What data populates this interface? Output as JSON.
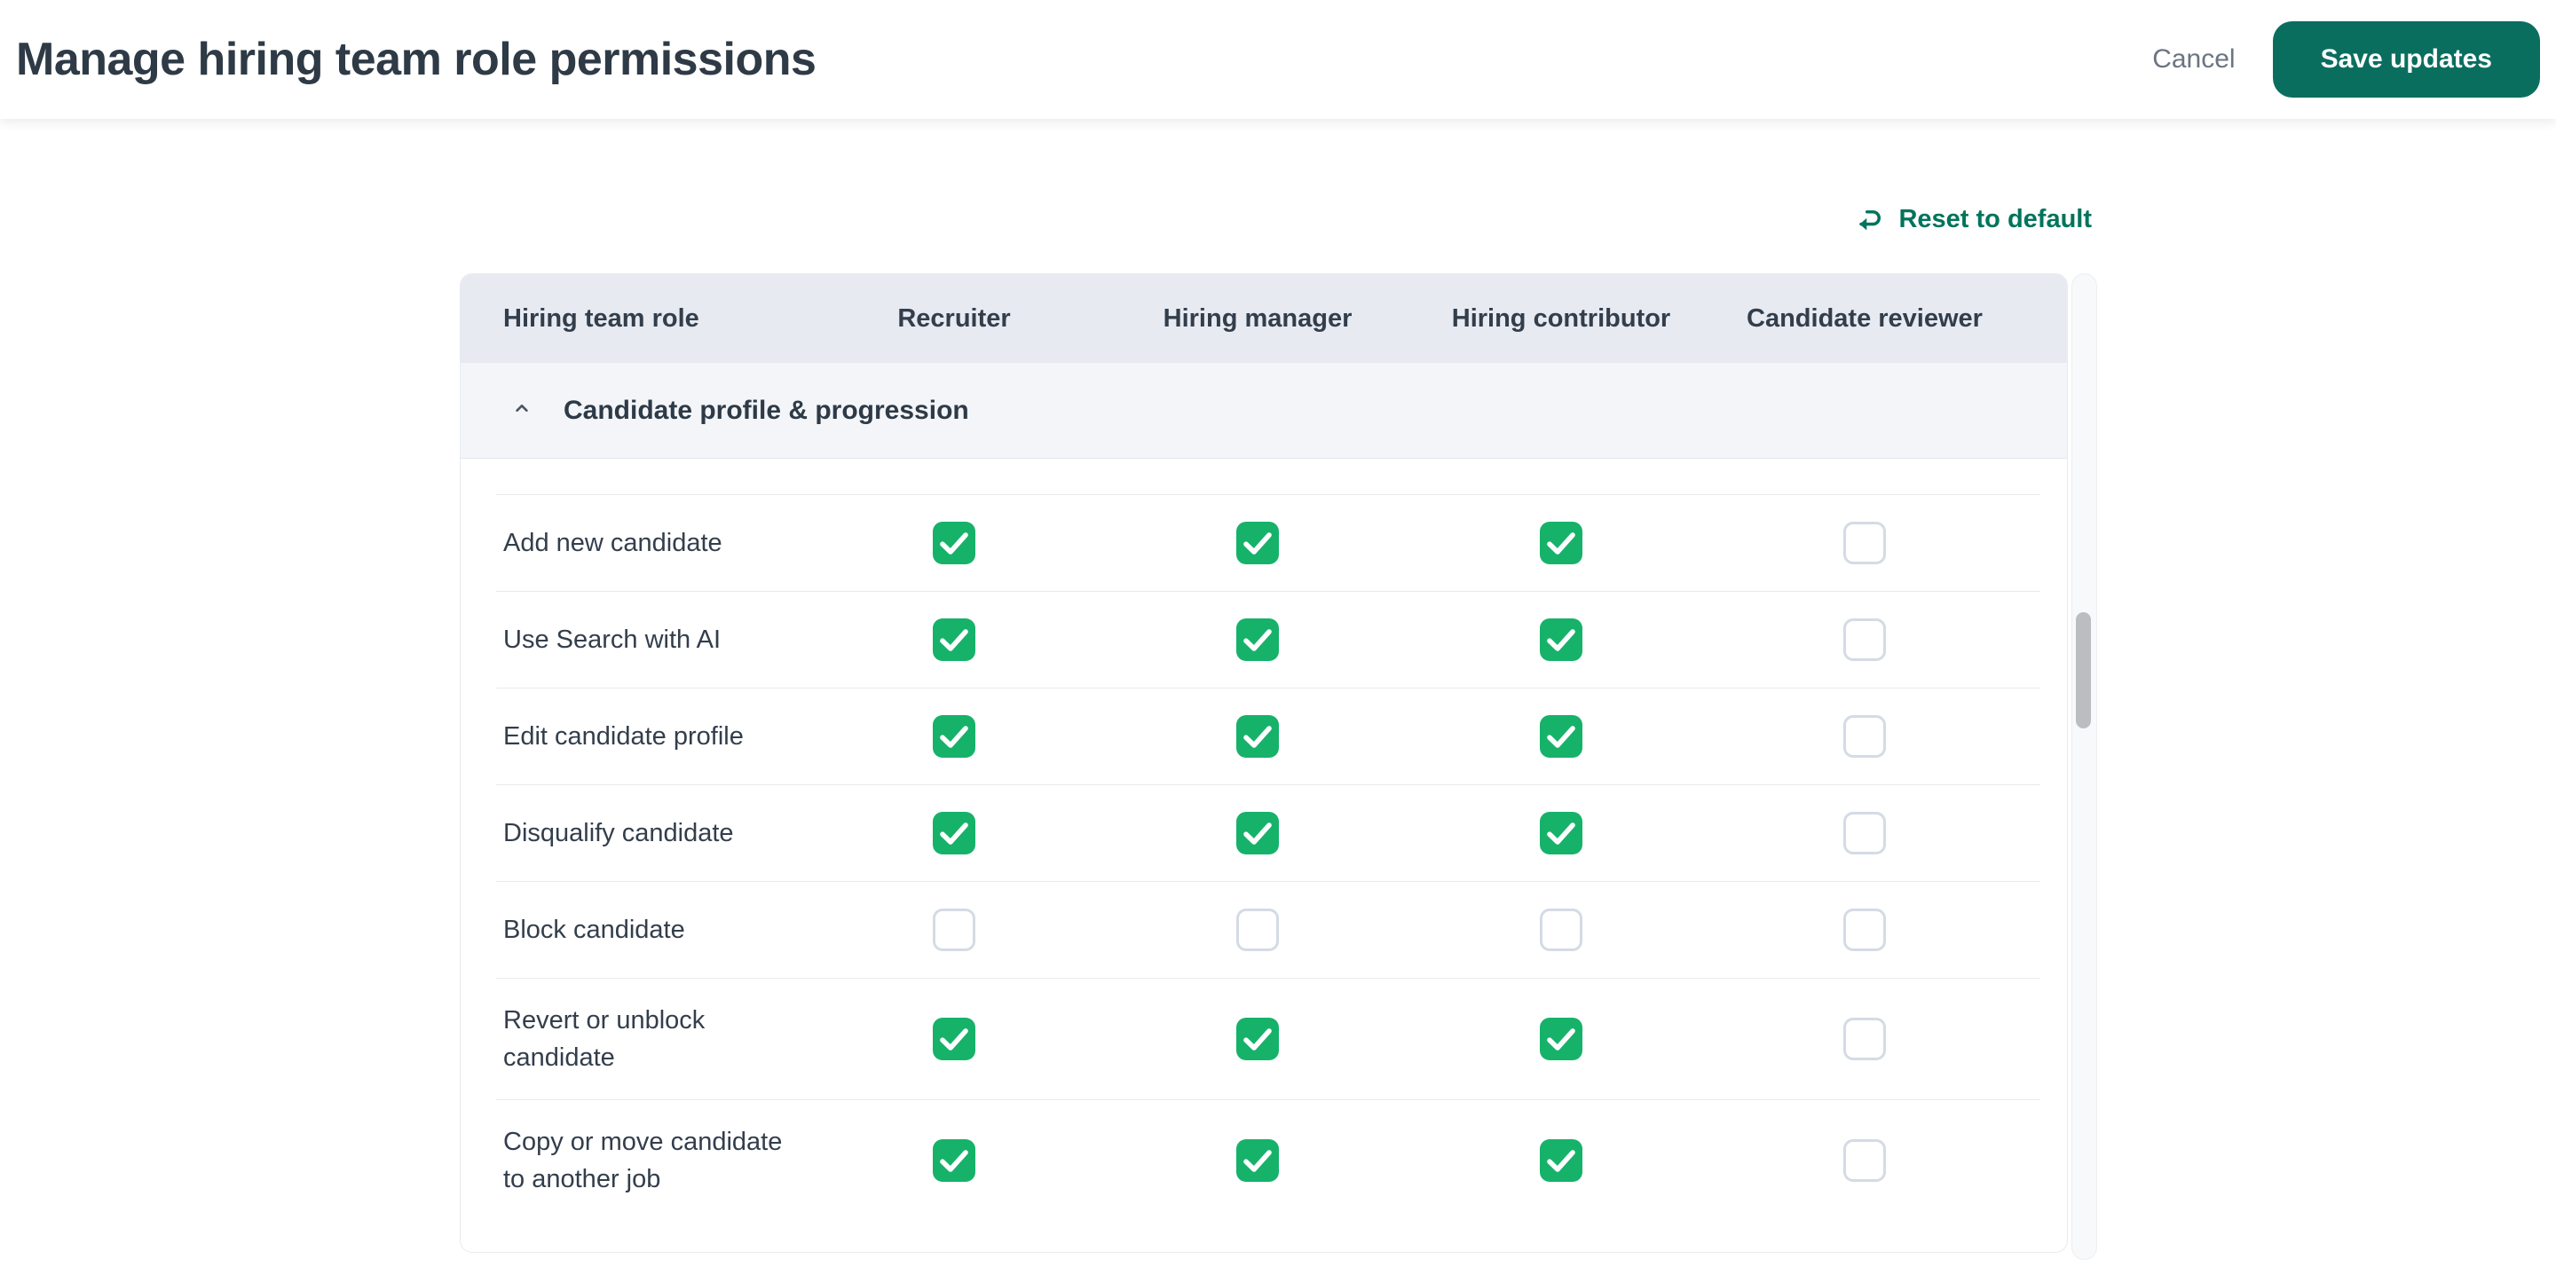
{
  "topbar": {
    "title": "Manage hiring team role permissions",
    "cancel_label": "Cancel",
    "save_label": "Save updates"
  },
  "actions": {
    "reset_label": "Reset to default",
    "reset_icon": "return-arrow-icon"
  },
  "table": {
    "columns": [
      "Hiring team role",
      "Recruiter",
      "Hiring manager",
      "Hiring contributor",
      "Candidate reviewer"
    ],
    "section": {
      "title": "Candidate profile & progression",
      "state": "expanded",
      "collapse_icon": "chevron-up-icon"
    },
    "rows": [
      {
        "label": "Add new candidate",
        "checks": [
          true,
          true,
          true,
          false
        ]
      },
      {
        "label": "Use Search with AI",
        "checks": [
          true,
          true,
          true,
          false
        ]
      },
      {
        "label": "Edit candidate profile",
        "checks": [
          true,
          true,
          true,
          false
        ]
      },
      {
        "label": "Disqualify candidate",
        "checks": [
          true,
          true,
          true,
          false
        ]
      },
      {
        "label": "Block candidate",
        "checks": [
          false,
          false,
          false,
          false
        ]
      },
      {
        "label": "Revert or unblock candidate",
        "checks": [
          true,
          true,
          true,
          false
        ]
      },
      {
        "label": "Copy or move candidate to another job",
        "checks": [
          true,
          true,
          true,
          false
        ]
      }
    ]
  },
  "colors": {
    "accent": "#0A6E5F",
    "link_green": "#00745C",
    "checkbox_green": "#16B26A",
    "header_bg": "#E7EAF1",
    "section_bg": "#F3F5F9"
  }
}
